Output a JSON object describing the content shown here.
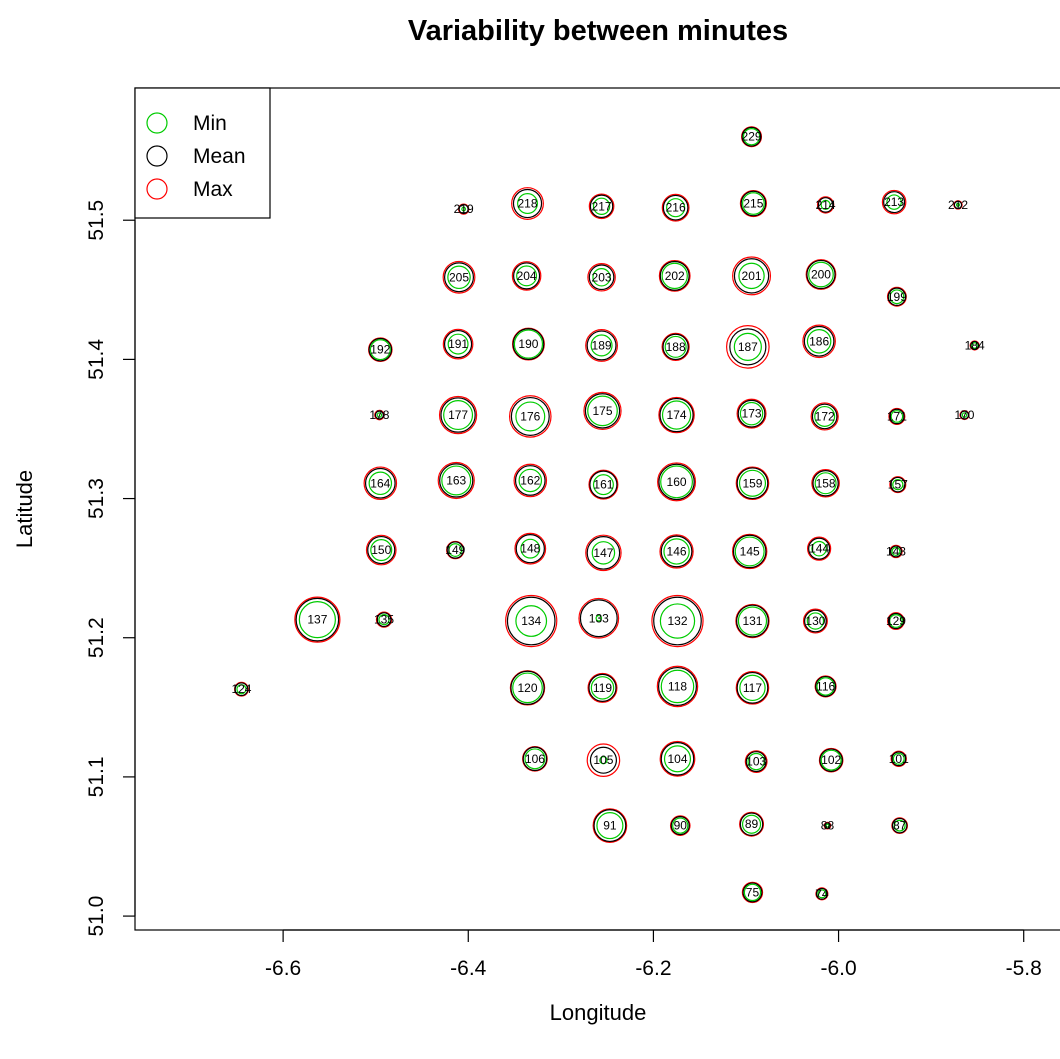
{
  "chart_data": {
    "type": "scatter",
    "title": "Variability between minutes",
    "xlabel": "Longitude",
    "ylabel": "Latitude",
    "xlim": [
      -6.76,
      -5.75
    ],
    "ylim": [
      50.99,
      1.0
    ],
    "x_ticks": [
      -6.6,
      -6.4,
      -6.2,
      -6.0,
      -5.8
    ],
    "x_tick_labels": [
      "-6.6",
      "-6.4",
      "-6.2",
      "-6.0",
      "-5.8"
    ],
    "y_ticks": [
      51.0,
      51.1,
      51.2,
      51.3,
      51.4,
      51.5
    ],
    "y_tick_labels": [
      "51.0",
      "51.1",
      "51.2",
      "51.3",
      "51.4",
      "51.5"
    ],
    "legend_position": "top-left",
    "grid": false,
    "legend": [
      {
        "label": "Min",
        "color": "#00cc00"
      },
      {
        "label": "Mean",
        "color": "#000000"
      },
      {
        "label": "Max",
        "color": "#ff0000"
      }
    ],
    "series_colors": {
      "min": "#00cc00",
      "mean": "#000000",
      "max": "#ff0000"
    },
    "fields": [
      "id",
      "longitude",
      "latitude",
      "min",
      "mean",
      "max"
    ],
    "points": [
      [
        "229",
        -6.094,
        51.56,
        0.45,
        0.52,
        0.55
      ],
      [
        "219",
        -6.405,
        51.508,
        0.1,
        0.25,
        0.28
      ],
      [
        "218",
        -6.336,
        51.512,
        0.55,
        0.78,
        0.88
      ],
      [
        "217",
        -6.256,
        51.51,
        0.45,
        0.62,
        0.68
      ],
      [
        "216",
        -6.176,
        51.509,
        0.5,
        0.68,
        0.74
      ],
      [
        "215",
        -6.092,
        51.512,
        0.6,
        0.68,
        0.72
      ],
      [
        "214",
        -6.014,
        51.511,
        0.25,
        0.4,
        0.45
      ],
      [
        "213",
        -5.94,
        51.513,
        0.4,
        0.58,
        0.65
      ],
      [
        "212",
        -5.871,
        51.511,
        0.08,
        0.2,
        0.23
      ],
      [
        "205",
        -6.41,
        51.459,
        0.62,
        0.8,
        0.88
      ],
      [
        "204",
        -6.337,
        51.46,
        0.55,
        0.72,
        0.79
      ],
      [
        "203",
        -6.256,
        51.459,
        0.48,
        0.68,
        0.76
      ],
      [
        "202",
        -6.177,
        51.46,
        0.7,
        0.8,
        0.85
      ],
      [
        "201",
        -6.094,
        51.46,
        0.7,
        0.95,
        1.05
      ],
      [
        "200",
        -6.019,
        51.461,
        0.68,
        0.78,
        0.82
      ],
      [
        "199",
        -5.937,
        51.445,
        0.38,
        0.48,
        0.52
      ],
      [
        "192",
        -6.495,
        51.407,
        0.55,
        0.62,
        0.65
      ],
      [
        "191",
        -6.411,
        51.411,
        0.55,
        0.75,
        0.82
      ],
      [
        "190",
        -6.335,
        51.411,
        0.78,
        0.85,
        0.88
      ],
      [
        "189",
        -6.256,
        51.41,
        0.58,
        0.8,
        0.88
      ],
      [
        "188",
        -6.176,
        51.409,
        0.58,
        0.7,
        0.75
      ],
      [
        "187",
        -6.098,
        51.409,
        0.75,
        1.0,
        1.18
      ],
      [
        "186",
        -6.021,
        51.413,
        0.65,
        0.82,
        0.9
      ],
      [
        "184",
        -5.853,
        51.41,
        0.15,
        0.22,
        0.25
      ],
      [
        "178",
        -6.496,
        51.36,
        0.12,
        0.22,
        0.26
      ],
      [
        "177",
        -6.411,
        51.36,
        0.8,
        0.95,
        1.03
      ],
      [
        "176",
        -6.333,
        51.359,
        0.8,
        1.05,
        1.15
      ],
      [
        "175",
        -6.255,
        51.363,
        0.82,
        0.95,
        1.03
      ],
      [
        "174",
        -6.175,
        51.36,
        0.78,
        0.92,
        0.98
      ],
      [
        "173",
        -6.094,
        51.361,
        0.62,
        0.74,
        0.8
      ],
      [
        "172",
        -6.015,
        51.359,
        0.55,
        0.68,
        0.75
      ],
      [
        "171",
        -5.937,
        51.359,
        0.32,
        0.4,
        0.44
      ],
      [
        "170",
        -5.864,
        51.36,
        0.12,
        0.22,
        0.25
      ],
      [
        "164",
        -6.495,
        51.311,
        0.62,
        0.82,
        0.9
      ],
      [
        "163",
        -6.413,
        51.313,
        0.8,
        0.92,
        1.0
      ],
      [
        "162",
        -6.333,
        51.313,
        0.62,
        0.82,
        0.9
      ],
      [
        "161",
        -6.254,
        51.31,
        0.55,
        0.75,
        0.8
      ],
      [
        "160",
        -6.175,
        51.312,
        0.88,
        0.98,
        1.05
      ],
      [
        "159",
        -6.093,
        51.311,
        0.72,
        0.85,
        0.9
      ],
      [
        "158",
        -6.014,
        51.311,
        0.58,
        0.7,
        0.76
      ],
      [
        "157",
        -5.936,
        51.31,
        0.28,
        0.4,
        0.44
      ],
      [
        "150",
        -6.494,
        51.263,
        0.58,
        0.75,
        0.82
      ],
      [
        "149",
        -6.414,
        51.263,
        0.35,
        0.45,
        0.48
      ],
      [
        "148",
        -6.333,
        51.264,
        0.52,
        0.78,
        0.85
      ],
      [
        "147",
        -6.254,
        51.261,
        0.62,
        0.9,
        0.98
      ],
      [
        "146",
        -6.175,
        51.262,
        0.7,
        0.85,
        0.92
      ],
      [
        "145",
        -6.096,
        51.262,
        0.8,
        0.9,
        0.95
      ],
      [
        "144",
        -6.021,
        51.264,
        0.4,
        0.58,
        0.64
      ],
      [
        "143",
        -5.938,
        51.262,
        0.22,
        0.3,
        0.34
      ],
      [
        "137",
        -6.563,
        51.213,
        1.0,
        1.18,
        1.25
      ],
      [
        "135",
        -6.491,
        51.213,
        0.28,
        0.38,
        0.42
      ],
      [
        "134",
        -6.332,
        51.212,
        0.85,
        1.32,
        1.42
      ],
      [
        "133",
        -6.259,
        51.214,
        0.15,
        1.02,
        1.1
      ],
      [
        "132",
        -6.174,
        51.212,
        0.95,
        1.32,
        1.42
      ],
      [
        "131",
        -6.093,
        51.212,
        0.78,
        0.88,
        0.92
      ],
      [
        "130",
        -6.025,
        51.212,
        0.45,
        0.6,
        0.66
      ],
      [
        "129",
        -5.938,
        51.212,
        0.35,
        0.42,
        0.46
      ],
      [
        "124",
        -6.645,
        51.163,
        0.25,
        0.35,
        0.38
      ],
      [
        "120",
        -6.336,
        51.164,
        0.82,
        0.92,
        0.95
      ],
      [
        "119",
        -6.255,
        51.164,
        0.62,
        0.75,
        0.8
      ],
      [
        "118",
        -6.174,
        51.165,
        0.9,
        1.05,
        1.12
      ],
      [
        "117",
        -6.093,
        51.164,
        0.7,
        0.85,
        0.9
      ],
      [
        "116",
        -6.014,
        51.165,
        0.48,
        0.55,
        0.58
      ],
      [
        "106",
        -6.328,
        51.113,
        0.55,
        0.65,
        0.68
      ],
      [
        "105",
        -6.254,
        51.112,
        0.2,
        0.72,
        0.9
      ],
      [
        "104",
        -6.174,
        51.113,
        0.72,
        0.9,
        0.96
      ],
      [
        "103",
        -6.089,
        51.111,
        0.45,
        0.55,
        0.6
      ],
      [
        "102",
        -6.008,
        51.112,
        0.55,
        0.62,
        0.65
      ],
      [
        "101",
        -5.935,
        51.113,
        0.3,
        0.38,
        0.42
      ],
      [
        "91",
        -6.247,
        51.065,
        0.72,
        0.88,
        0.93
      ],
      [
        "90",
        -6.171,
        51.065,
        0.42,
        0.5,
        0.54
      ],
      [
        "89",
        -6.094,
        51.066,
        0.5,
        0.62,
        0.66
      ],
      [
        "88",
        -6.012,
        51.065,
        0.08,
        0.15,
        0.18
      ],
      [
        "87",
        -5.934,
        51.065,
        0.3,
        0.4,
        0.43
      ],
      [
        "75",
        -6.093,
        51.017,
        0.45,
        0.52,
        0.56
      ],
      [
        "74",
        -6.018,
        51.016,
        0.22,
        0.3,
        0.33
      ]
    ]
  }
}
